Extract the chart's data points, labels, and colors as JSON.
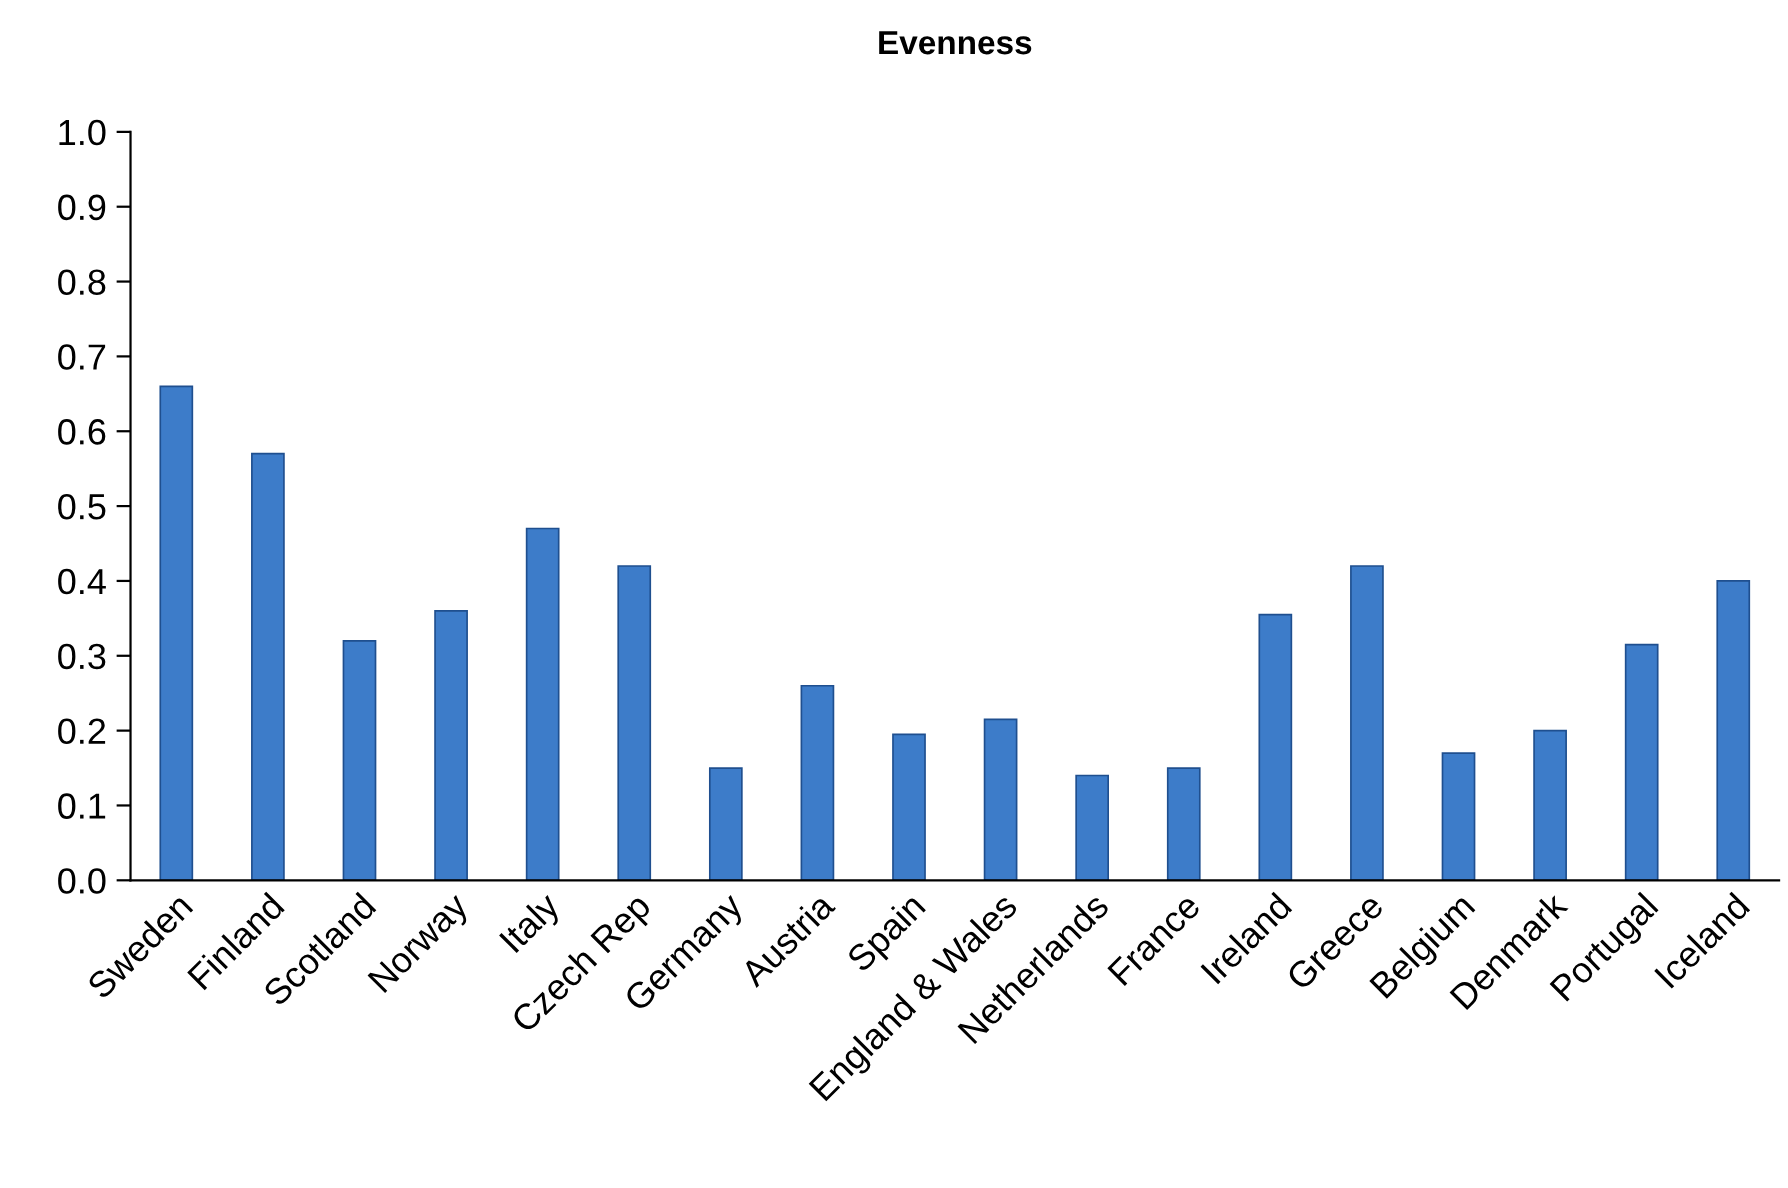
{
  "chart_data": {
    "type": "bar",
    "title": "Evenness",
    "categories": [
      "Sweden",
      "Finland",
      "Scotland",
      "Norway",
      "Italy",
      "Czech Rep",
      "Germany",
      "Austria",
      "Spain",
      "England & Wales",
      "Netherlands",
      "France",
      "Ireland",
      "Greece",
      "Belgium",
      "Denmark",
      "Portugal",
      "Iceland"
    ],
    "values": [
      0.66,
      0.57,
      0.32,
      0.36,
      0.47,
      0.42,
      0.15,
      0.26,
      0.195,
      0.215,
      0.14,
      0.15,
      0.355,
      0.42,
      0.17,
      0.2,
      0.315,
      0.4
    ],
    "color": "#3d7cc9",
    "ylim": [
      0,
      1.0
    ],
    "yticks": [
      {
        "value": 0,
        "label": "0.0"
      },
      {
        "value": 0.1,
        "label": "0.1"
      },
      {
        "value": 0.2,
        "label": "0.2"
      },
      {
        "value": 0.3,
        "label": "0.3"
      },
      {
        "value": 0.4,
        "label": "0.4"
      },
      {
        "value": 0.5,
        "label": "0.5"
      },
      {
        "value": 0.6,
        "label": "0.6"
      },
      {
        "value": 0.7,
        "label": "0.7"
      },
      {
        "value": 0.8,
        "label": "0.8"
      },
      {
        "value": 0.9,
        "label": "0.9"
      },
      {
        "value": 1.0,
        "label": "1.0"
      }
    ],
    "grid": false,
    "legend": false
  }
}
